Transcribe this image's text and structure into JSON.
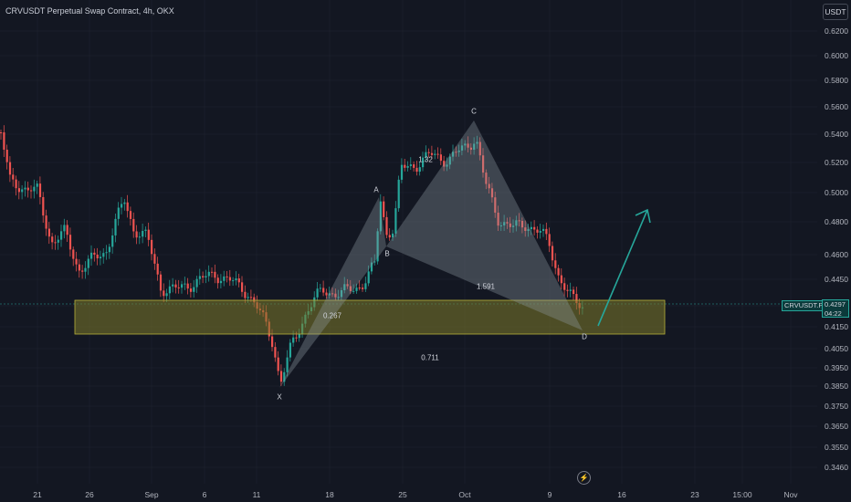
{
  "header": {
    "title": "CRVUSDT Perpetual Swap Contract, 4h, OKX"
  },
  "unit_button": "USDT",
  "y_axis": [
    "0.6200",
    "0.6000",
    "0.5800",
    "0.5600",
    "0.5400",
    "0.5200",
    "0.5000",
    "0.4800",
    "0.4600",
    "0.4450",
    "0.4300",
    "0.4150",
    "0.4050",
    "0.3950",
    "0.3850",
    "0.3750",
    "0.3650",
    "0.3550",
    "0.3460"
  ],
  "x_axis": [
    "21",
    "26",
    "Sep",
    "6",
    "11",
    "18",
    "25",
    "Oct",
    "9",
    "16",
    "23",
    "15:00",
    "Nov"
  ],
  "symbol_tag": "CRVUSDT.P",
  "last_price": "0.4297",
  "countdown": "04:22",
  "pattern_labels": {
    "x": "X",
    "a": "A",
    "b": "B",
    "c": "C",
    "d": "D"
  },
  "ratios": {
    "xb": "0.267",
    "ac": "1.32",
    "bd": "1.591",
    "xd": "0.711"
  },
  "colors": {
    "background": "#131722",
    "up": "#26a69a",
    "down": "#ef5350",
    "zone": "#7d7a2a",
    "pattern": "#8f9aa3"
  },
  "icons": {
    "replay": "lightning-icon"
  }
}
